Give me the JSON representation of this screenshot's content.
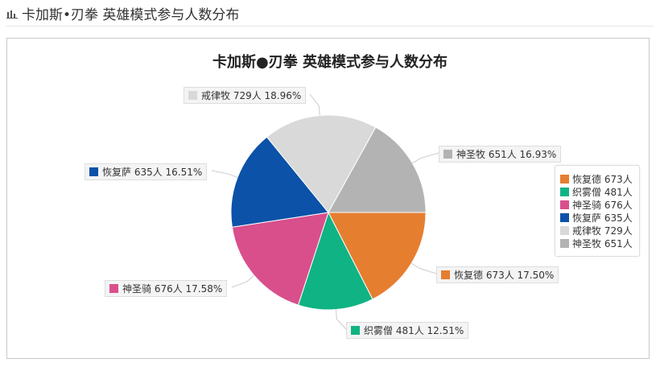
{
  "header": {
    "icon": "bar-chart-icon",
    "title": "卡加斯•刃拳 英雄模式参与人数分布"
  },
  "chart_data": {
    "type": "pie",
    "title": "卡加斯●刃拳 英雄模式参与人数分布",
    "legend_placement": "right",
    "slices": [
      {
        "name": "恢复德",
        "value": 673,
        "unit": "人",
        "percent": "17.50%",
        "color": "#e67e30",
        "label": "恢复德 673人 17.50%",
        "legend": "恢复德 673人"
      },
      {
        "name": "织雾僧",
        "value": 481,
        "unit": "人",
        "percent": "12.51%",
        "color": "#10b383",
        "label": "织雾僧 481人 12.51%",
        "legend": "织雾僧 481人"
      },
      {
        "name": "神圣骑",
        "value": 676,
        "unit": "人",
        "percent": "17.58%",
        "color": "#d94f8c",
        "label": "神圣骑 676人 17.58%",
        "legend": "神圣骑 676人"
      },
      {
        "name": "恢复萨",
        "value": 635,
        "unit": "人",
        "percent": "16.51%",
        "color": "#0b52a8",
        "label": "恢复萨 635人 16.51%",
        "legend": "恢复萨 635人"
      },
      {
        "name": "戒律牧",
        "value": 729,
        "unit": "人",
        "percent": "18.96%",
        "color": "#d9d9d9",
        "label": "戒律牧 729人 18.96%",
        "legend": "戒律牧 729人"
      },
      {
        "name": "神圣牧",
        "value": 651,
        "unit": "人",
        "percent": "16.93%",
        "color": "#b3b3b3",
        "label": "神圣牧 651人 16.93%",
        "legend": "神圣牧 651人"
      }
    ]
  }
}
